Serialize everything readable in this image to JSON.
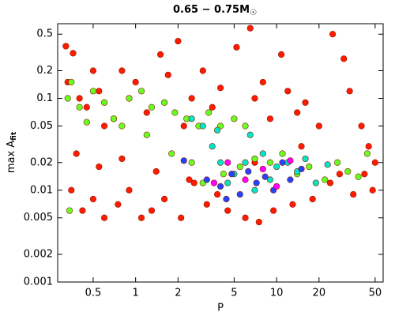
{
  "chart_data": {
    "type": "scatter",
    "title": "0.65 − 0.75M",
    "title_sub": "☉",
    "xlabel": "P",
    "ylabel": "max A",
    "ylabel_sub": "fit",
    "xscale": "log",
    "yscale": "log",
    "xlim": [
      0.28,
      57
    ],
    "ylim": [
      0.001,
      0.65
    ],
    "xticks": [
      0.5,
      1,
      2,
      5,
      10,
      20,
      50
    ],
    "yticks": [
      0.001,
      0.002,
      0.005,
      0.01,
      0.02,
      0.05,
      0.1,
      0.2,
      0.5
    ],
    "series": [
      {
        "color": "#ff1a00",
        "x": [
          0.32,
          0.36,
          0.33,
          0.4,
          0.45,
          0.5,
          0.55,
          0.6,
          0.7,
          0.8,
          0.9,
          1.0,
          1.2,
          1.5,
          1.7,
          2.0,
          2.2,
          2.5,
          3,
          3.5,
          4,
          5.2,
          6.5,
          7,
          8,
          9,
          10.8,
          12,
          14,
          16,
          20,
          25,
          30,
          33,
          40,
          45,
          50,
          0.35,
          0.42,
          0.5,
          0.6,
          0.75,
          0.9,
          1.1,
          1.3,
          1.6,
          2.1,
          2.6,
          3.2,
          4.5,
          6,
          7.5,
          9.5,
          13,
          18,
          24,
          35,
          42,
          48,
          0.38,
          0.55,
          0.8,
          1.4,
          2.4,
          3.8,
          7,
          15,
          28
        ],
        "y": [
          0.37,
          0.31,
          0.15,
          0.1,
          0.08,
          0.2,
          0.12,
          0.05,
          0.06,
          0.2,
          0.1,
          0.15,
          0.07,
          0.3,
          0.18,
          0.42,
          0.05,
          0.1,
          0.2,
          0.08,
          0.13,
          0.36,
          0.58,
          0.1,
          0.15,
          0.06,
          0.3,
          0.12,
          0.07,
          0.09,
          0.05,
          0.5,
          0.27,
          0.12,
          0.05,
          0.03,
          0.02,
          0.01,
          0.006,
          0.008,
          0.005,
          0.007,
          0.01,
          0.005,
          0.006,
          0.008,
          0.005,
          0.012,
          0.007,
          0.006,
          0.005,
          0.0045,
          0.006,
          0.007,
          0.008,
          0.012,
          0.009,
          0.015,
          0.01,
          0.025,
          0.018,
          0.022,
          0.016,
          0.013,
          0.009,
          0.02,
          0.03,
          0.015
        ]
      },
      {
        "color": "#66ff22",
        "x": [
          0.33,
          0.35,
          0.4,
          0.5,
          0.6,
          0.7,
          0.9,
          1.1,
          1.3,
          1.6,
          1.9,
          2.3,
          2.8,
          3.3,
          4,
          5,
          6,
          0.34,
          0.45,
          0.8,
          1.2,
          1.8,
          2.5,
          3,
          4.2,
          5.5,
          7,
          9,
          11,
          14,
          17,
          22,
          27,
          32,
          38,
          44
        ],
        "y": [
          0.1,
          0.15,
          0.08,
          0.12,
          0.09,
          0.06,
          0.1,
          0.12,
          0.08,
          0.09,
          0.07,
          0.06,
          0.05,
          0.07,
          0.05,
          0.06,
          0.05,
          0.006,
          0.055,
          0.05,
          0.04,
          0.025,
          0.02,
          0.012,
          0.015,
          0.018,
          0.022,
          0.02,
          0.025,
          0.015,
          0.018,
          0.013,
          0.02,
          0.016,
          0.014,
          0.025
        ]
      },
      {
        "color": "#00e6c8",
        "x": [
          2.5,
          3,
          3.5,
          4,
          4.5,
          5,
          6,
          7,
          8,
          9,
          10,
          12,
          14,
          16,
          19,
          23,
          3.8,
          6.5
        ],
        "y": [
          0.06,
          0.05,
          0.03,
          0.02,
          0.012,
          0.015,
          0.02,
          0.01,
          0.025,
          0.013,
          0.018,
          0.02,
          0.016,
          0.022,
          0.012,
          0.019,
          0.045,
          0.04
        ]
      },
      {
        "color": "#2244ff",
        "x": [
          3.2,
          4,
          4.8,
          5.5,
          6.3,
          7.2,
          8.3,
          9.5,
          11,
          12.5,
          15,
          4.4,
          2.2
        ],
        "y": [
          0.013,
          0.011,
          0.015,
          0.009,
          0.016,
          0.012,
          0.014,
          0.01,
          0.02,
          0.013,
          0.017,
          0.008,
          0.021
        ]
      },
      {
        "color": "#ff00ff",
        "x": [
          4.5,
          6,
          8,
          10,
          12.5,
          3.6
        ],
        "y": [
          0.02,
          0.013,
          0.017,
          0.011,
          0.021,
          0.012
        ]
      }
    ]
  }
}
